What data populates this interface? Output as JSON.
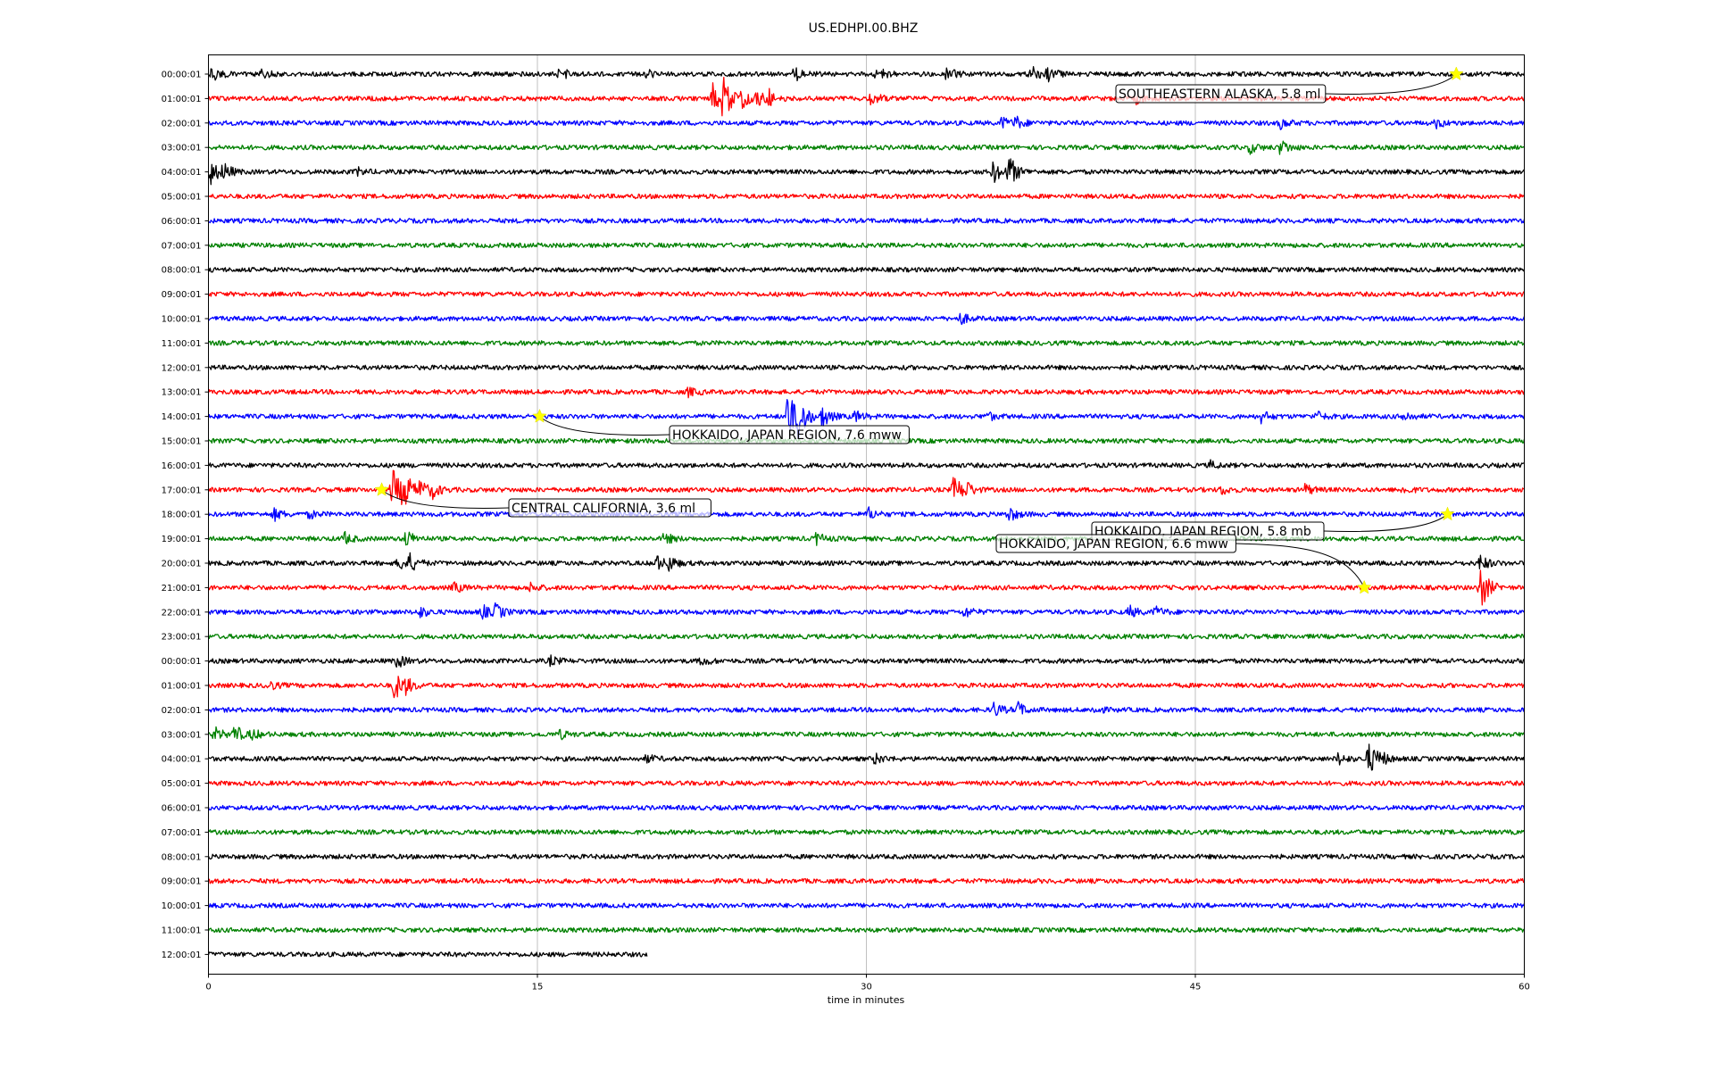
{
  "chart_data": {
    "type": "line",
    "title": "US.EDHPI.00.BHZ",
    "xlabel": "time in minutes",
    "ylabel": "",
    "xlim": [
      0,
      60
    ],
    "xticks": [
      "0",
      "15",
      "30",
      "45",
      "60"
    ],
    "xtick_values": [
      0,
      15,
      30,
      45,
      60
    ],
    "grid": "vertical",
    "trace_duration_min": 60,
    "last_trace_end_min": 20,
    "trace_colors": [
      "#000000",
      "#ff0000",
      "#0000ff",
      "#008000"
    ],
    "event_marker_color": "#ffff00",
    "rows": [
      {
        "label": "00:00:01",
        "events": [
          [
            0.2,
            2.0
          ],
          [
            2.4,
            1.2
          ],
          [
            16,
            1.8
          ],
          [
            20,
            1.0
          ],
          [
            26.7,
            2.2
          ],
          [
            30.5,
            2.0
          ],
          [
            33.6,
            2.2
          ],
          [
            37.5,
            2.4
          ],
          [
            38.2,
            3.0
          ]
        ]
      },
      {
        "label": "01:00:01",
        "events": [
          [
            23.0,
            4.0
          ],
          [
            23.5,
            6.5
          ],
          [
            24.2,
            3.5
          ],
          [
            25.0,
            3.0
          ],
          [
            25.6,
            2.0
          ],
          [
            30.2,
            2.2
          ],
          [
            42.3,
            1.2
          ]
        ]
      },
      {
        "label": "02:00:01",
        "events": [
          [
            36.2,
            1.5
          ],
          [
            36.8,
            1.6
          ],
          [
            48.9,
            1.5
          ],
          [
            56.0,
            1.2
          ]
        ]
      },
      {
        "label": "03:00:01",
        "events": [
          [
            47.5,
            1.4
          ],
          [
            48.9,
            2.2
          ]
        ]
      },
      {
        "label": "04:00:01",
        "events": [
          [
            0.1,
            3.5
          ],
          [
            0.7,
            2.0
          ],
          [
            6.8,
            1.0
          ],
          [
            35.8,
            3.0
          ],
          [
            36.5,
            4.5
          ]
        ]
      },
      {
        "label": "05:00:01",
        "events": []
      },
      {
        "label": "06:00:01",
        "events": []
      },
      {
        "label": "07:00:01",
        "events": []
      },
      {
        "label": "08:00:01",
        "events": []
      },
      {
        "label": "09:00:01",
        "events": []
      },
      {
        "label": "10:00:01",
        "events": [
          [
            34.3,
            1.5
          ]
        ]
      },
      {
        "label": "11:00:01",
        "events": []
      },
      {
        "label": "12:00:01",
        "events": []
      },
      {
        "label": "13:00:01",
        "events": [
          [
            21.9,
            1.2
          ]
        ]
      },
      {
        "label": "14:00:01",
        "events": [
          [
            26.4,
            8.0
          ],
          [
            26.9,
            6.0
          ],
          [
            28.0,
            3.0
          ],
          [
            29.5,
            1.5
          ],
          [
            35.5,
            1.2
          ],
          [
            48.0,
            1.6
          ],
          [
            50.5,
            1.4
          ],
          [
            54.5,
            1.4
          ]
        ]
      },
      {
        "label": "15:00:01",
        "events": []
      },
      {
        "label": "16:00:01",
        "events": [
          [
            45.7,
            1.0
          ]
        ]
      },
      {
        "label": "17:00:01",
        "events": [
          [
            8.4,
            6.0
          ],
          [
            8.9,
            5.0
          ],
          [
            9.6,
            2.5
          ],
          [
            10.2,
            2.0
          ],
          [
            34.0,
            4.0
          ],
          [
            34.5,
            2.0
          ],
          [
            46.2,
            1.2
          ],
          [
            50.0,
            1.5
          ],
          [
            54.5,
            1.0
          ]
        ]
      },
      {
        "label": "18:00:01",
        "events": [
          [
            3.0,
            1.6
          ],
          [
            4.6,
            1.0
          ],
          [
            30.1,
            1.6
          ],
          [
            36.5,
            2.0
          ]
        ]
      },
      {
        "label": "19:00:01",
        "events": [
          [
            6.2,
            1.6
          ],
          [
            9.0,
            2.4
          ],
          [
            20.8,
            1.6
          ],
          [
            27.7,
            1.6
          ]
        ]
      },
      {
        "label": "20:00:01",
        "events": [
          [
            8.7,
            2.2
          ],
          [
            9.2,
            2.0
          ],
          [
            20.4,
            2.2
          ],
          [
            21.0,
            1.8
          ],
          [
            58.0,
            2.2
          ]
        ]
      },
      {
        "label": "21:00:01",
        "events": [
          [
            11.2,
            1.4
          ],
          [
            14.7,
            1.2
          ],
          [
            58.0,
            6.5
          ]
        ]
      },
      {
        "label": "22:00:01",
        "events": [
          [
            9.6,
            1.6
          ],
          [
            12.5,
            1.8
          ],
          [
            13.1,
            2.0
          ],
          [
            34.5,
            1.4
          ],
          [
            42.0,
            1.6
          ],
          [
            43.2,
            1.4
          ]
        ]
      },
      {
        "label": "23:00:01",
        "events": []
      },
      {
        "label": "00:00:01",
        "events": [
          [
            8.6,
            1.8
          ],
          [
            15.6,
            1.2
          ],
          [
            22.5,
            1.2
          ]
        ]
      },
      {
        "label": "01:00:01",
        "events": [
          [
            2.7,
            1.4
          ],
          [
            8.5,
            4.0
          ],
          [
            9.0,
            1.6
          ]
        ]
      },
      {
        "label": "02:00:01",
        "events": [
          [
            35.8,
            2.0
          ],
          [
            36.9,
            2.0
          ],
          [
            40.4,
            1.0
          ]
        ]
      },
      {
        "label": "03:00:01",
        "events": [
          [
            0.3,
            1.8
          ],
          [
            1.2,
            2.4
          ],
          [
            2.0,
            1.2
          ],
          [
            16.0,
            1.2
          ]
        ]
      },
      {
        "label": "04:00:01",
        "events": [
          [
            20.0,
            1.0
          ],
          [
            30.4,
            1.4
          ],
          [
            51.5,
            1.6
          ],
          [
            52.9,
            4.5
          ],
          [
            53.4,
            1.6
          ]
        ]
      },
      {
        "label": "05:00:01",
        "events": []
      },
      {
        "label": "06:00:01",
        "events": []
      },
      {
        "label": "07:00:01",
        "events": []
      },
      {
        "label": "08:00:01",
        "events": []
      },
      {
        "label": "09:00:01",
        "events": []
      },
      {
        "label": "10:00:01",
        "events": []
      },
      {
        "label": "11:00:01",
        "events": []
      },
      {
        "label": "12:00:01",
        "events": []
      }
    ],
    "annotations": [
      {
        "text": "SOUTHEASTERN ALASKA, 5.8 ml",
        "row": 0,
        "minute": 56.9
      },
      {
        "text": "HOKKAIDO, JAPAN REGION, 7.6 mww",
        "row": 14,
        "minute": 15.1
      },
      {
        "text": "CENTRAL CALIFORNIA, 3.6 ml",
        "row": 17,
        "minute": 7.9
      },
      {
        "text": "HOKKAIDO, JAPAN REGION, 5.8 mb",
        "row": 18,
        "minute": 56.5
      },
      {
        "text": "HOKKAIDO, JAPAN REGION, 6.6 mww",
        "row": 21,
        "minute": 52.7
      }
    ]
  }
}
